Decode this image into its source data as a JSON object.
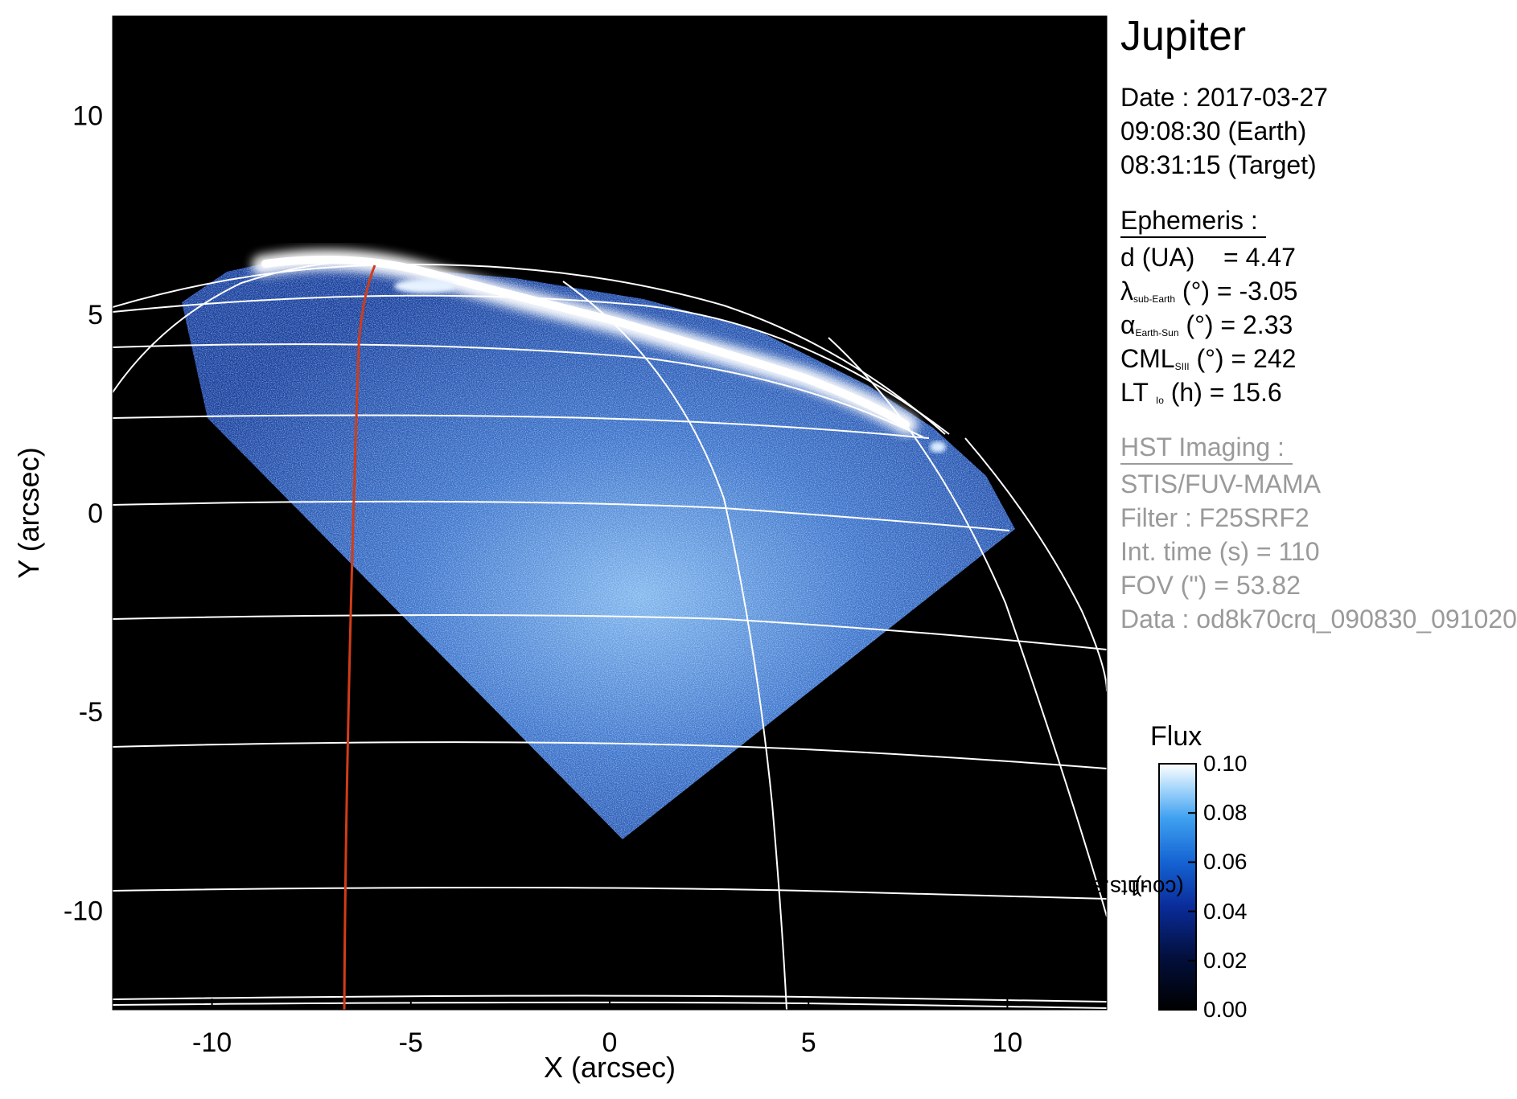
{
  "chart_data": {
    "type": "image",
    "title": "Jupiter",
    "xlabel": "X (arcsec)",
    "ylabel": "Y (arcsec)",
    "xlim": [
      -12.5,
      12.5
    ],
    "ylim": [
      -12.5,
      12.5
    ],
    "x_ticks": [
      -10,
      -5,
      0,
      5,
      10
    ],
    "y_ticks": [
      -10,
      -5,
      0,
      5,
      10
    ],
    "grid": "latitude-longitude graticule (white) with one highlighted meridian (red)",
    "colormap": "black-blue-white",
    "colorbar": {
      "title": "Flux",
      "unit": "(counts.s",
      "unit_sup": "-1",
      "unit_end": ")",
      "range": [
        0.0,
        0.1
      ],
      "ticks": [
        "0.10",
        "0.08",
        "0.06",
        "0.04",
        "0.02",
        "0.00"
      ]
    }
  },
  "info": {
    "date": "Date : 2017-03-27",
    "earth_time": "09:08:30 (Earth)",
    "target_time": "08:31:15 (Target)",
    "ephemeris_heading": "Ephemeris :",
    "distance": {
      "label": "d (UA)",
      "value": "= 4.47"
    },
    "sub_earth_lat": {
      "symbol": "λ",
      "sub": "sub-Earth",
      "unit": "(°)",
      "value": "= -3.05"
    },
    "phase_angle": {
      "symbol": "α",
      "sub": "Earth-Sun",
      "unit": "(°)",
      "value": "= 2.33"
    },
    "cml": {
      "symbol": "CML",
      "sub": "SIII",
      "unit": "(°)",
      "value": "= 242"
    },
    "lt": {
      "symbol": "LT",
      "sub": "Io",
      "unit": "(h)",
      "value": "= 15.6"
    },
    "hst_heading": "HST Imaging :",
    "instrument": "STIS/FUV-MAMA",
    "filter": "Filter : F25SRF2",
    "int_time": "Int. time (s) = 110",
    "fov": "FOV (\") = 53.82",
    "data_file": "Data : od8k70crq_090830_091020"
  }
}
